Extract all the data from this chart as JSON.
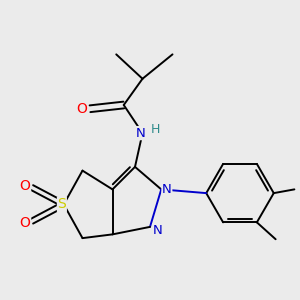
{
  "bg_color": "#ebebeb",
  "bond_color": "#000000",
  "atom_colors": {
    "O": "#ff0000",
    "N": "#0000cc",
    "S": "#cccc00",
    "H": "#2e8b8b",
    "C": "#000000"
  },
  "figsize": [
    3.0,
    3.0
  ],
  "dpi": 100
}
